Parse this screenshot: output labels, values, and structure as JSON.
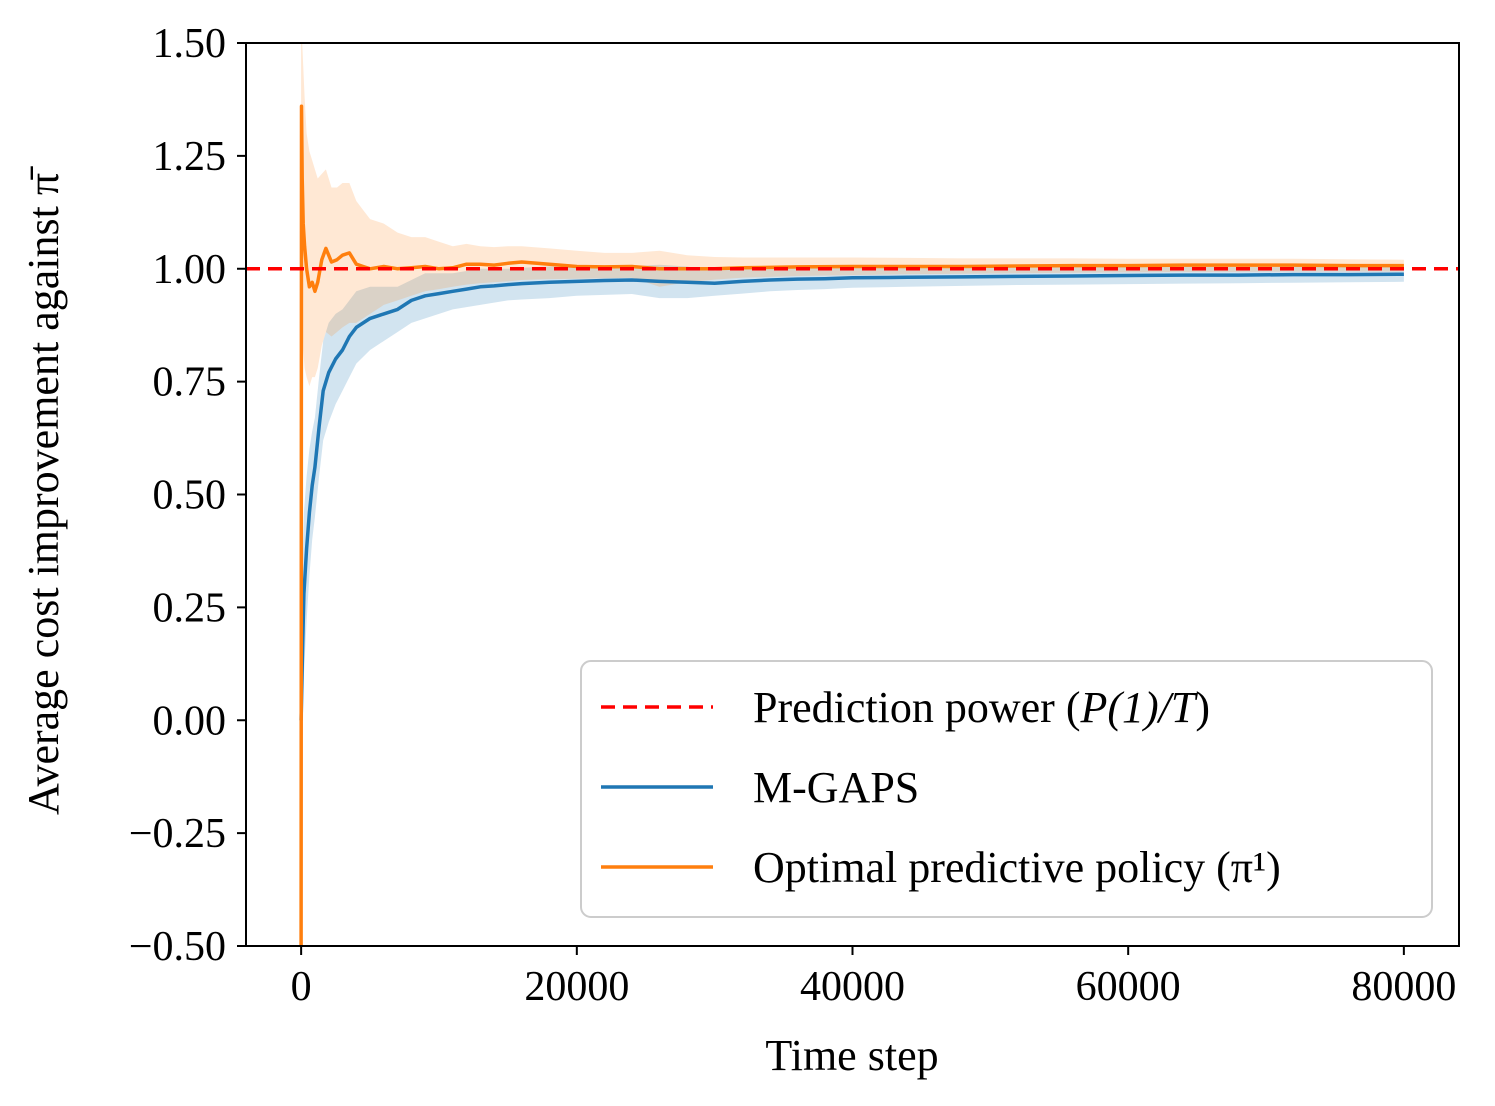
{
  "chart_data": {
    "type": "line",
    "title": "",
    "xlabel": "Time step",
    "ylabel": "Average cost improvement against π̄",
    "xlim": [
      -4000,
      84000
    ],
    "ylim": [
      -0.5,
      1.5
    ],
    "xticks": [
      0,
      20000,
      40000,
      60000,
      80000
    ],
    "xtick_labels": [
      "0",
      "20000",
      "40000",
      "60000",
      "80000"
    ],
    "yticks": [
      -0.5,
      -0.25,
      0.0,
      0.25,
      0.5,
      0.75,
      1.0,
      1.25,
      1.5
    ],
    "ytick_labels": [
      "−0.50",
      "−0.25",
      "0.00",
      "0.25",
      "0.50",
      "0.75",
      "1.00",
      "1.25",
      "1.50"
    ],
    "grid": false,
    "legend_position": "lower-right",
    "reference_line": {
      "name": "Prediction power (P(1)/T)",
      "legend_prefix": "Prediction power (",
      "legend_math": "P(1)/T",
      "legend_suffix": ")",
      "y": 1.0,
      "color": "#ff0000",
      "style": "dashed"
    },
    "series": [
      {
        "name": "M-GAPS",
        "color": "#1f77b4",
        "band_color": "#1f77b4",
        "x": [
          0,
          100,
          200,
          400,
          600,
          800,
          1000,
          1300,
          1600,
          2000,
          2500,
          3000,
          3500,
          4000,
          5000,
          6000,
          7000,
          8000,
          9000,
          10000,
          11000,
          12000,
          13000,
          14000,
          15000,
          16000,
          18000,
          20000,
          22000,
          24000,
          26000,
          28000,
          30000,
          32000,
          34000,
          36000,
          38000,
          40000,
          44000,
          48000,
          52000,
          56000,
          60000,
          64000,
          68000,
          72000,
          76000,
          80000
        ],
        "values": [
          0.0,
          0.15,
          0.28,
          0.38,
          0.46,
          0.52,
          0.56,
          0.65,
          0.73,
          0.77,
          0.8,
          0.82,
          0.85,
          0.87,
          0.89,
          0.9,
          0.91,
          0.93,
          0.94,
          0.945,
          0.95,
          0.955,
          0.96,
          0.962,
          0.965,
          0.967,
          0.97,
          0.972,
          0.974,
          0.975,
          0.972,
          0.97,
          0.968,
          0.972,
          0.975,
          0.977,
          0.978,
          0.98,
          0.981,
          0.982,
          0.983,
          0.984,
          0.985,
          0.986,
          0.986,
          0.987,
          0.987,
          0.988
        ],
        "lower": [
          -0.2,
          -0.05,
          0.1,
          0.22,
          0.32,
          0.4,
          0.45,
          0.54,
          0.62,
          0.66,
          0.7,
          0.73,
          0.76,
          0.79,
          0.82,
          0.84,
          0.86,
          0.88,
          0.89,
          0.9,
          0.91,
          0.915,
          0.92,
          0.925,
          0.93,
          0.932,
          0.935,
          0.94,
          0.942,
          0.944,
          0.935,
          0.935,
          0.94,
          0.945,
          0.95,
          0.953,
          0.955,
          0.958,
          0.96,
          0.962,
          0.964,
          0.965,
          0.966,
          0.967,
          0.968,
          0.969,
          0.97,
          0.971
        ],
        "upper": [
          0.2,
          0.35,
          0.46,
          0.54,
          0.6,
          0.64,
          0.67,
          0.76,
          0.84,
          0.88,
          0.9,
          0.91,
          0.93,
          0.95,
          0.96,
          0.96,
          0.96,
          0.975,
          0.99,
          0.99,
          0.99,
          0.995,
          1.0,
          1.0,
          1.0,
          1.002,
          1.005,
          1.004,
          1.006,
          1.006,
          1.009,
          1.005,
          0.996,
          0.999,
          1.0,
          1.001,
          1.001,
          1.002,
          1.002,
          1.002,
          1.002,
          1.003,
          1.004,
          1.005,
          1.004,
          1.005,
          1.004,
          1.005
        ]
      },
      {
        "name": "Optimal predictive policy (π¹)",
        "color": "#ff7f0e",
        "band_color": "#ff7f0e",
        "x": [
          0,
          30,
          80,
          150,
          250,
          400,
          600,
          800,
          1000,
          1200,
          1500,
          1800,
          2200,
          2600,
          3000,
          3500,
          4000,
          4500,
          5000,
          6000,
          7000,
          8000,
          9000,
          10000,
          11000,
          12000,
          13000,
          14000,
          15000,
          16000,
          18000,
          20000,
          22000,
          24000,
          26000,
          28000,
          30000,
          32000,
          34000,
          36000,
          40000,
          44000,
          48000,
          52000,
          56000,
          60000,
          64000,
          68000,
          72000,
          76000,
          80000
        ],
        "values": [
          -0.5,
          1.36,
          1.2,
          1.1,
          1.05,
          1.0,
          0.96,
          0.97,
          0.95,
          0.97,
          1.02,
          1.045,
          1.015,
          1.02,
          1.03,
          1.035,
          1.01,
          1.005,
          1.0,
          1.005,
          1.0,
          1.002,
          1.005,
          1.0,
          1.002,
          1.01,
          1.01,
          1.008,
          1.012,
          1.015,
          1.01,
          1.005,
          1.004,
          1.005,
          1.0,
          1.0,
          1.0,
          1.002,
          1.003,
          1.004,
          1.005,
          1.005,
          1.005,
          1.006,
          1.007,
          1.007,
          1.008,
          1.008,
          1.008,
          1.007,
          1.007
        ],
        "lower": [
          -0.5,
          1.1,
          0.92,
          0.82,
          0.78,
          0.76,
          0.74,
          0.76,
          0.76,
          0.78,
          0.83,
          0.86,
          0.85,
          0.86,
          0.87,
          0.88,
          0.88,
          0.89,
          0.9,
          0.92,
          0.93,
          0.94,
          0.95,
          0.955,
          0.96,
          0.965,
          0.968,
          0.97,
          0.972,
          0.975,
          0.977,
          0.978,
          0.979,
          0.98,
          0.96,
          0.97,
          0.976,
          0.98,
          0.982,
          0.984,
          0.986,
          0.988,
          0.989,
          0.99,
          0.991,
          0.992,
          0.993,
          0.993,
          0.994,
          0.994,
          0.994
        ],
        "upper": [
          1.5,
          1.5,
          1.5,
          1.45,
          1.38,
          1.3,
          1.26,
          1.24,
          1.22,
          1.2,
          1.21,
          1.22,
          1.18,
          1.18,
          1.19,
          1.19,
          1.15,
          1.13,
          1.11,
          1.1,
          1.08,
          1.07,
          1.07,
          1.06,
          1.05,
          1.055,
          1.05,
          1.048,
          1.05,
          1.05,
          1.045,
          1.04,
          1.035,
          1.035,
          1.04,
          1.03,
          1.026,
          1.025,
          1.025,
          1.025,
          1.025,
          1.024,
          1.023,
          1.023,
          1.023,
          1.022,
          1.022,
          1.022,
          1.022,
          1.021,
          1.02
        ]
      }
    ]
  }
}
